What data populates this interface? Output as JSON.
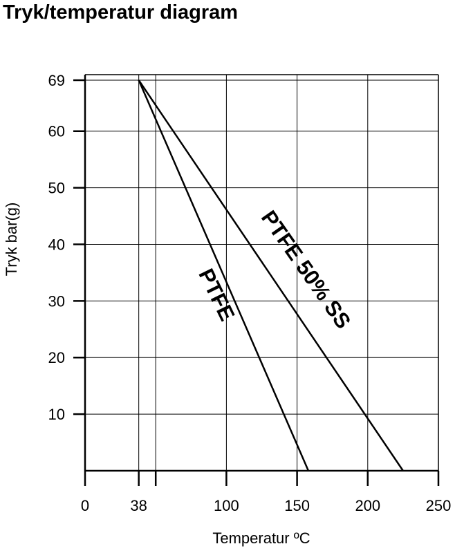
{
  "page": {
    "title": "Tryk/temperatur diagram"
  },
  "chart_data": {
    "type": "line",
    "xlabel": "Temperatur ºC",
    "ylabel": "Tryk bar(g)",
    "xlim": [
      0,
      250
    ],
    "ylim": [
      0,
      69
    ],
    "x_ticks": [
      0,
      38,
      100,
      150,
      200,
      250
    ],
    "x_tick_labels": [
      "0",
      "38",
      "100",
      "150",
      "200",
      "250"
    ],
    "y_ticks": [
      10,
      20,
      30,
      40,
      50,
      60,
      69
    ],
    "y_tick_labels": [
      "10",
      "20",
      "30",
      "40",
      "50",
      "60",
      "69"
    ],
    "x_gridlines": [
      38,
      50,
      100,
      150,
      200,
      250
    ],
    "y_gridlines": [
      10,
      20,
      30,
      40,
      50,
      60,
      69
    ],
    "grid": true,
    "series": [
      {
        "name": "PTFE",
        "x": [
          38,
          158
        ],
        "y": [
          69,
          0
        ]
      },
      {
        "name": "PTFE 50% SS",
        "x": [
          38,
          225
        ],
        "y": [
          69,
          0
        ]
      }
    ]
  }
}
